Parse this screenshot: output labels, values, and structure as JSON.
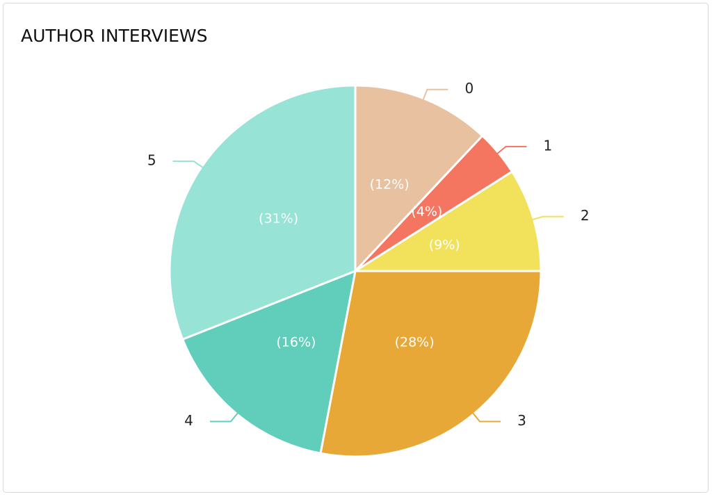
{
  "chart_data": {
    "type": "pie",
    "title": "AUTHOR INTERVIEWS",
    "categories": [
      "0",
      "1",
      "2",
      "3",
      "4",
      "5"
    ],
    "values": [
      12,
      4,
      9,
      28,
      16,
      31
    ],
    "value_labels": [
      "(12%)",
      "(4%)",
      "(9%)",
      "(28%)",
      "(16%)",
      "(31%)"
    ],
    "colors": [
      "#e8c1a0",
      "#f47560",
      "#f1e15b",
      "#e8a838",
      "#61cdbb",
      "#97e3d5"
    ]
  }
}
